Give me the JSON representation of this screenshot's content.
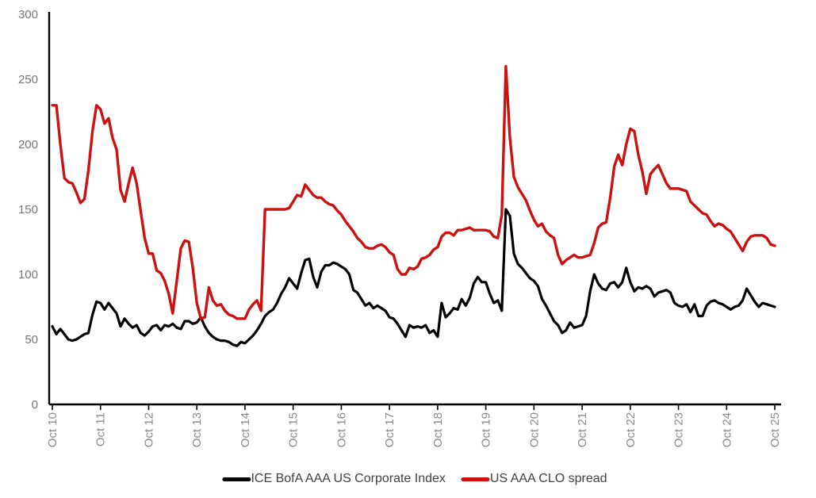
{
  "chart_data": {
    "type": "line",
    "title": "",
    "xlabel": "",
    "ylabel": "",
    "x_unit": "monthly, Oct 2010 to Oct 2025",
    "x_tick_labels": [
      "Oct 10",
      "Oct 11",
      "Oct 12",
      "Oct 13",
      "Oct 14",
      "Oct 15",
      "Oct 16",
      "Oct 17",
      "Oct 18",
      "Oct 19",
      "Oct 20",
      "Oct 21",
      "Oct 22",
      "Oct 23",
      "Oct 24",
      "Oct 25"
    ],
    "y_ticks": [
      0,
      50,
      100,
      150,
      200,
      250,
      300
    ],
    "ylim": [
      0,
      300
    ],
    "grid": false,
    "legend_position": "bottom",
    "axis_color": "#000000",
    "tick_label_color": "#757575",
    "series": [
      {
        "name": "ICE BofA AAA US Corporate Index",
        "color": "#000000",
        "stroke_width": 3.2,
        "values": [
          60,
          54,
          58,
          54,
          50,
          49,
          50,
          52,
          54,
          55,
          69,
          79,
          78,
          73,
          78,
          74,
          70,
          60,
          66,
          62,
          59,
          61,
          55,
          53,
          56,
          60,
          61,
          57,
          61,
          60,
          62,
          59,
          58,
          64,
          64,
          62,
          63,
          67,
          60,
          55,
          52,
          50,
          49,
          49,
          48,
          46,
          45,
          48,
          47,
          50,
          53,
          57,
          62,
          68,
          71,
          73,
          78,
          85,
          90,
          97,
          93,
          89,
          101,
          111,
          112,
          98,
          90,
          102,
          107,
          107,
          109,
          108,
          106,
          104,
          100,
          88,
          86,
          81,
          76,
          78,
          74,
          76,
          74,
          72,
          67,
          66,
          62,
          57,
          52,
          61,
          59,
          60,
          59,
          61,
          55,
          57,
          52,
          78,
          67,
          70,
          74,
          73,
          81,
          76,
          82,
          93,
          98,
          94,
          94,
          85,
          78,
          80,
          72,
          150,
          145,
          116,
          108,
          105,
          101,
          97,
          95,
          91,
          81,
          76,
          70,
          64,
          61,
          55,
          57,
          63,
          59,
          60,
          61,
          68,
          87,
          100,
          93,
          89,
          88,
          93,
          94,
          90,
          94,
          105,
          94,
          87,
          90,
          89,
          91,
          89,
          83,
          86,
          87,
          88,
          86,
          78,
          76,
          75,
          77,
          71,
          77,
          68,
          68,
          76,
          79,
          80,
          78,
          77,
          75,
          73,
          75,
          76,
          80,
          89,
          84,
          79,
          75,
          78,
          77,
          76,
          75
        ]
      },
      {
        "name": "US AAA CLO spread",
        "color": "#cc1111",
        "stroke_width": 3.4,
        "values": [
          230,
          230,
          200,
          174,
          171,
          170,
          163,
          155,
          158,
          180,
          210,
          230,
          227,
          216,
          220,
          205,
          196,
          165,
          156,
          170,
          182,
          170,
          149,
          128,
          116,
          116,
          103,
          101,
          95,
          85,
          70,
          95,
          120,
          126,
          125,
          105,
          78,
          66,
          67,
          90,
          80,
          76,
          77,
          72,
          69,
          68,
          66,
          66,
          66,
          73,
          77,
          80,
          72,
          150,
          150,
          150,
          150,
          150,
          150,
          151,
          156,
          161,
          160,
          169,
          165,
          161,
          159,
          159,
          156,
          154,
          153,
          149,
          146,
          141,
          137,
          133,
          128,
          125,
          121,
          120,
          120,
          122,
          123,
          121,
          117,
          115,
          104,
          100,
          100,
          105,
          104,
          106,
          112,
          113,
          115,
          119,
          121,
          129,
          132,
          132,
          130,
          134,
          134,
          135,
          136,
          134,
          134,
          134,
          134,
          133,
          129,
          128,
          146,
          260,
          205,
          175,
          167,
          162,
          157,
          149,
          142,
          137,
          139,
          133,
          130,
          128,
          115,
          108,
          111,
          113,
          115,
          113,
          113,
          114,
          115,
          124,
          136,
          139,
          140,
          159,
          183,
          192,
          184,
          200,
          212,
          210,
          192,
          179,
          162,
          177,
          181,
          184,
          177,
          170,
          166,
          166,
          166,
          165,
          164,
          156,
          153,
          150,
          147,
          146,
          141,
          137,
          139,
          138,
          135,
          133,
          128,
          123,
          118,
          125,
          129,
          130,
          130,
          130,
          128,
          123,
          122
        ]
      }
    ]
  },
  "legend": {
    "items": [
      {
        "label": "ICE BofA AAA US Corporate Index",
        "color": "#000000"
      },
      {
        "label": "US AAA CLO spread",
        "color": "#cc1111"
      }
    ]
  }
}
